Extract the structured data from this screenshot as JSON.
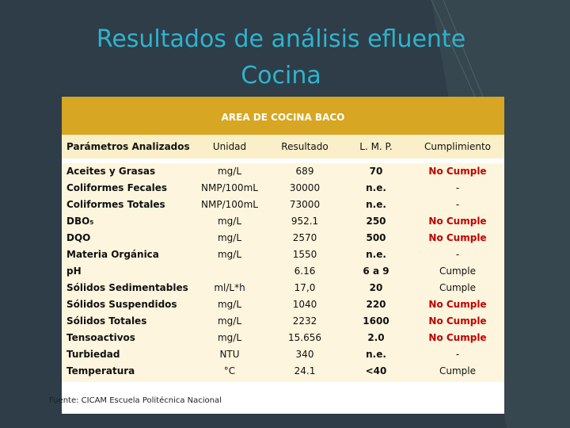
{
  "title": {
    "line1": "Resultados de análisis efluente",
    "line2": "Cocina"
  },
  "table": {
    "caption": "AREA DE COCINA BACO",
    "headers": [
      "Parámetros Analizados",
      "Unidad",
      "Resultado",
      "L. M. P.",
      "Cumplimiento"
    ],
    "rows": [
      [
        "Aceites y Grasas",
        "mg/L",
        "689",
        "70",
        "No Cumple"
      ],
      [
        "Coliformes Fecales",
        "NMP/100mL",
        "30000",
        "n.e.",
        "-"
      ],
      [
        "Coliformes Totales",
        "NMP/100mL",
        "73000",
        "n.e.",
        "-"
      ],
      [
        "DBO₅",
        "mg/L",
        "952.1",
        "250",
        "No Cumple"
      ],
      [
        "DQO",
        "mg/L",
        "2570",
        "500",
        "No Cumple"
      ],
      [
        "Materia Orgánica",
        "mg/L",
        "1550",
        "n.e.",
        "-"
      ],
      [
        "pH",
        null,
        "6.16",
        "6 a 9",
        "Cumple"
      ],
      [
        "Sólidos Sedimentables",
        "ml/L*h",
        "17,0",
        "20",
        "Cumple"
      ],
      [
        "Sólidos Suspendidos",
        "mg/L",
        "1040",
        "220",
        "No Cumple"
      ],
      [
        "Sólidos Totales",
        "mg/L",
        "2232",
        "1600",
        "No Cumple"
      ],
      [
        "Tensoactivos",
        "mg/L",
        "15.656",
        "2.0",
        "No Cumple"
      ],
      [
        "Turbiedad",
        "NTU",
        "340",
        "n.e.",
        "-"
      ],
      [
        "Temperatura",
        "°C",
        "24.1",
        "<40",
        "Cumple"
      ]
    ],
    "source": "Fuente: CICAM Escuela Politécnica Nacional"
  }
}
